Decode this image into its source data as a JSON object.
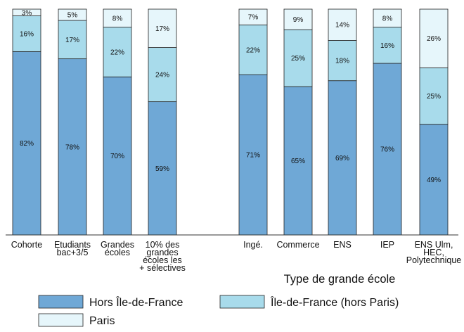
{
  "chart_data": {
    "type": "bar",
    "stacked": true,
    "ylim": [
      0,
      100
    ],
    "group_label": "Type de grande école",
    "categories": [
      [
        "Cohorte"
      ],
      [
        "Etudiants",
        "bac+3/5"
      ],
      [
        "Grandes",
        "écoles"
      ],
      [
        "10% des",
        "grandes",
        "écoles les",
        "+ sélectives"
      ],
      [
        "Ingé."
      ],
      [
        "Commerce"
      ],
      [
        "ENS"
      ],
      [
        "IEP"
      ],
      [
        "ENS Ulm,",
        "HEC,",
        "Polytechnique"
      ]
    ],
    "series": [
      {
        "name": "Hors Île-de-France",
        "color": "#6fa8d6",
        "values": [
          82,
          78,
          70,
          59,
          71,
          65,
          69,
          76,
          49
        ]
      },
      {
        "name": "Île-de-France (hors Paris)",
        "color": "#a8dbeb",
        "values": [
          16,
          17,
          22,
          24,
          22,
          25,
          18,
          16,
          25
        ]
      },
      {
        "name": "Paris",
        "color": "#e6f6fb",
        "values": [
          3,
          5,
          8,
          17,
          7,
          9,
          14,
          8,
          26
        ]
      }
    ],
    "data_labels": [
      [
        "82%",
        "78%",
        "70%",
        "59%",
        "71%",
        "65%",
        "69%",
        "76%",
        "49%"
      ],
      [
        "16%",
        "17%",
        "22%",
        "24%",
        "22%",
        "25%",
        "18%",
        "16%",
        "25%"
      ],
      [
        "3%",
        "5%",
        "8%",
        "17%",
        "7%",
        "9%",
        "14%",
        "8%",
        "26%"
      ]
    ],
    "legend": {
      "position": "bottom"
    }
  }
}
